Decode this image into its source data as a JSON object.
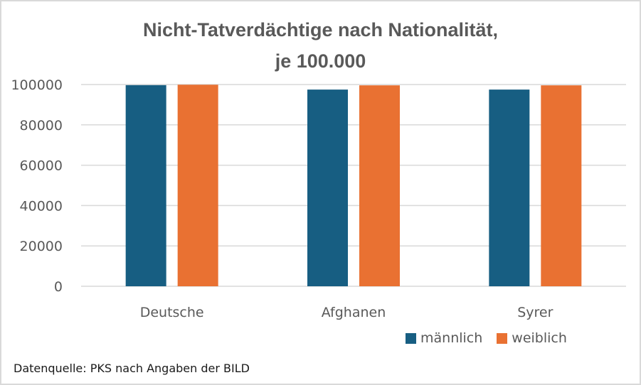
{
  "chart_data": {
    "type": "bar",
    "title": "Nicht-Tatverdächtige nach Nationalität, je 100.000",
    "title_lines": [
      "Nicht-Tatverdächtige nach Nationalität,",
      "je 100.000"
    ],
    "categories": [
      "Deutsche",
      "Afghanen",
      "Syrer"
    ],
    "series": [
      {
        "name": "männlich",
        "color": "#175E82",
        "values": [
          99700,
          97500,
          97500
        ]
      },
      {
        "name": "weiblich",
        "color": "#E97132",
        "values": [
          99900,
          99600,
          99600
        ]
      }
    ],
    "xlabel": "",
    "ylabel": "",
    "ylim": [
      0,
      100000
    ],
    "yticks": [
      0,
      20000,
      40000,
      60000,
      80000,
      100000
    ],
    "ytick_labels": [
      "0",
      "20000",
      "40000",
      "60000",
      "80000",
      "100000"
    ],
    "grid": true,
    "legend_position": "bottom-right",
    "source_note": "Datenquelle: PKS nach Angaben der BILD"
  }
}
